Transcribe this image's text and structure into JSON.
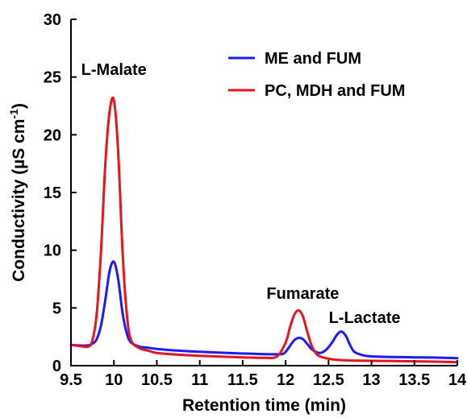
{
  "chart_data": {
    "type": "line",
    "title": "",
    "xlabel": "Retention time (min)",
    "ylabel": "Conductivity (µS cm",
    "ylabel_sup": "-1",
    "ylabel_end": ")",
    "xlim": [
      9.5,
      14
    ],
    "ylim": [
      0,
      30
    ],
    "x_ticks": [
      9.5,
      10,
      10.5,
      11,
      11.5,
      12,
      12.5,
      13,
      13.5,
      14
    ],
    "x_tick_labels": [
      "9.5",
      "10",
      "10.5",
      "11",
      "11.5",
      "12",
      "12.5",
      "13",
      "13.5",
      "14"
    ],
    "y_ticks": [
      0,
      5,
      10,
      15,
      20,
      25,
      30
    ],
    "y_tick_labels": [
      "0",
      "5",
      "10",
      "15",
      "20",
      "25",
      "30"
    ],
    "legend_position": "top-right",
    "grid": false,
    "series": [
      {
        "name": "ME and FUM",
        "color": "#1a1aff",
        "x": [
          9.5,
          9.6,
          9.7,
          9.75,
          9.8,
          9.85,
          9.9,
          9.95,
          10.0,
          10.05,
          10.1,
          10.15,
          10.2,
          10.3,
          10.4,
          10.5,
          10.75,
          11.0,
          11.25,
          11.5,
          11.75,
          11.95,
          12.0,
          12.05,
          12.1,
          12.15,
          12.2,
          12.25,
          12.3,
          12.35,
          12.4,
          12.45,
          12.5,
          12.55,
          12.6,
          12.65,
          12.7,
          12.75,
          12.8,
          12.9,
          13.0,
          13.25,
          13.5,
          13.75,
          14.0
        ],
        "y": [
          1.8,
          1.75,
          1.75,
          1.9,
          2.3,
          3.5,
          5.7,
          8.2,
          9.0,
          7.5,
          4.6,
          2.8,
          2.0,
          1.65,
          1.55,
          1.45,
          1.3,
          1.2,
          1.12,
          1.05,
          1.0,
          1.0,
          1.2,
          1.7,
          2.2,
          2.4,
          2.3,
          1.9,
          1.45,
          1.2,
          1.1,
          1.25,
          1.6,
          2.1,
          2.7,
          2.95,
          2.6,
          1.8,
          1.2,
          0.9,
          0.8,
          0.75,
          0.72,
          0.7,
          0.65
        ]
      },
      {
        "name": "PC, MDH and FUM",
        "color": "#e8141c",
        "x": [
          9.5,
          9.6,
          9.7,
          9.75,
          9.8,
          9.85,
          9.9,
          9.95,
          10.0,
          10.05,
          10.1,
          10.15,
          10.2,
          10.3,
          10.4,
          10.5,
          10.75,
          11.0,
          11.25,
          11.5,
          11.75,
          11.9,
          12.0,
          12.05,
          12.1,
          12.15,
          12.2,
          12.25,
          12.3,
          12.35,
          12.4,
          12.5,
          12.6,
          12.75,
          13.0,
          13.25,
          13.5,
          13.75,
          14.0
        ],
        "y": [
          1.8,
          1.7,
          1.65,
          2.2,
          4.5,
          10.0,
          17.5,
          22.0,
          23.0,
          18.5,
          10.0,
          4.5,
          2.2,
          1.5,
          1.3,
          1.1,
          0.95,
          0.85,
          0.78,
          0.72,
          0.68,
          0.8,
          2.0,
          3.3,
          4.4,
          4.8,
          4.3,
          3.0,
          1.8,
          1.1,
          0.8,
          0.6,
          0.5,
          0.45,
          0.42,
          0.4,
          0.38,
          0.35,
          0.3
        ]
      }
    ],
    "annotations": [
      {
        "text": "L-Malate",
        "x": 10.0,
        "y": 25.2
      },
      {
        "text": "Fumarate",
        "x": 12.2,
        "y": 5.8
      },
      {
        "text": "L-Lactate",
        "x": 12.92,
        "y": 3.7
      }
    ]
  }
}
